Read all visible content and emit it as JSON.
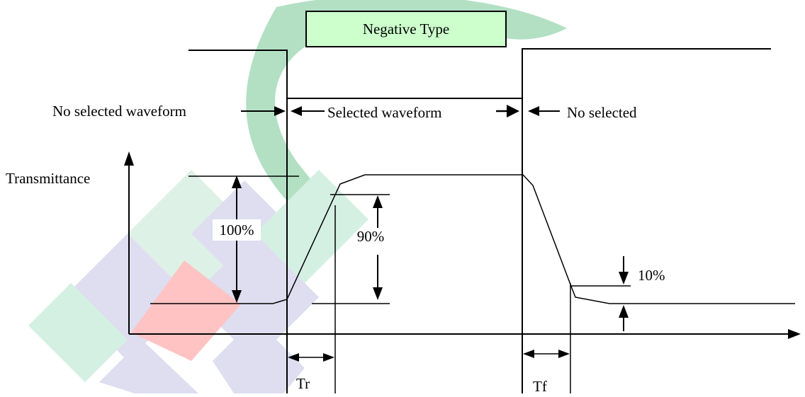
{
  "title": "Negative Type",
  "labels": {
    "no_selected_waveform": "No selected waveform",
    "selected_waveform": "Selected waveform",
    "no_selected": "No selected",
    "transmittance": "Transmittance",
    "pct_100": "100%",
    "pct_90": "90%",
    "pct_10": "10%",
    "tr": "Tr",
    "tf": "Tf"
  },
  "colors": {
    "title_fill": "#ccffcc",
    "line": "#000000",
    "watermark_green": "#1aa34a",
    "watermark_lavender": "#c8c8e6",
    "watermark_mint": "#b8e6cf",
    "watermark_pink": "#ff8f8f"
  }
}
